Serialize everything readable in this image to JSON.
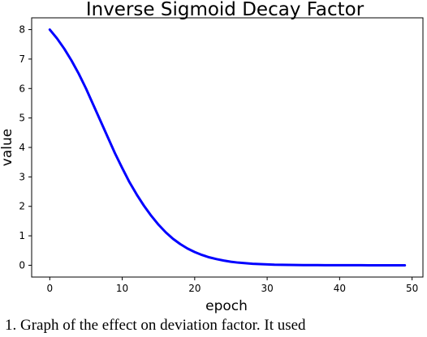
{
  "chart_data": {
    "type": "line",
    "title": "Inverse Sigmoid Decay Factor",
    "xlabel": "epoch",
    "ylabel": "value",
    "xlim": [
      -2.5,
      51.5
    ],
    "ylim": [
      -0.4,
      8.4
    ],
    "xticks": [
      0,
      10,
      20,
      30,
      40,
      50
    ],
    "yticks": [
      0,
      1,
      2,
      3,
      4,
      5,
      6,
      7,
      8
    ],
    "grid": false,
    "series": [
      {
        "color": "#0000ff",
        "x": [
          0,
          1,
          2,
          3,
          4,
          5,
          6,
          7,
          8,
          9,
          10,
          11,
          12,
          13,
          14,
          15,
          16,
          17,
          18,
          19,
          20,
          21,
          22,
          23,
          24,
          25,
          26,
          27,
          28,
          29,
          30,
          31,
          32,
          33,
          34,
          35,
          36,
          37,
          38,
          39,
          40,
          41,
          42,
          43,
          44,
          45,
          46,
          47,
          48,
          49
        ],
        "values": [
          8.0,
          7.7,
          7.35,
          6.95,
          6.5,
          6.0,
          5.45,
          4.9,
          4.35,
          3.8,
          3.3,
          2.82,
          2.4,
          2.02,
          1.68,
          1.38,
          1.12,
          0.9,
          0.72,
          0.57,
          0.45,
          0.35,
          0.27,
          0.21,
          0.16,
          0.12,
          0.09,
          0.07,
          0.05,
          0.04,
          0.03,
          0.02,
          0.016,
          0.012,
          0.009,
          0.007,
          0.005,
          0.004,
          0.003,
          0.002,
          0.0015,
          0.001,
          0.0008,
          0.0006,
          0.0004,
          0.0003,
          0.0002,
          0.0002,
          0.0001,
          0.0001
        ]
      }
    ]
  },
  "caption": "1. Graph of the effect on deviation factor. It used"
}
